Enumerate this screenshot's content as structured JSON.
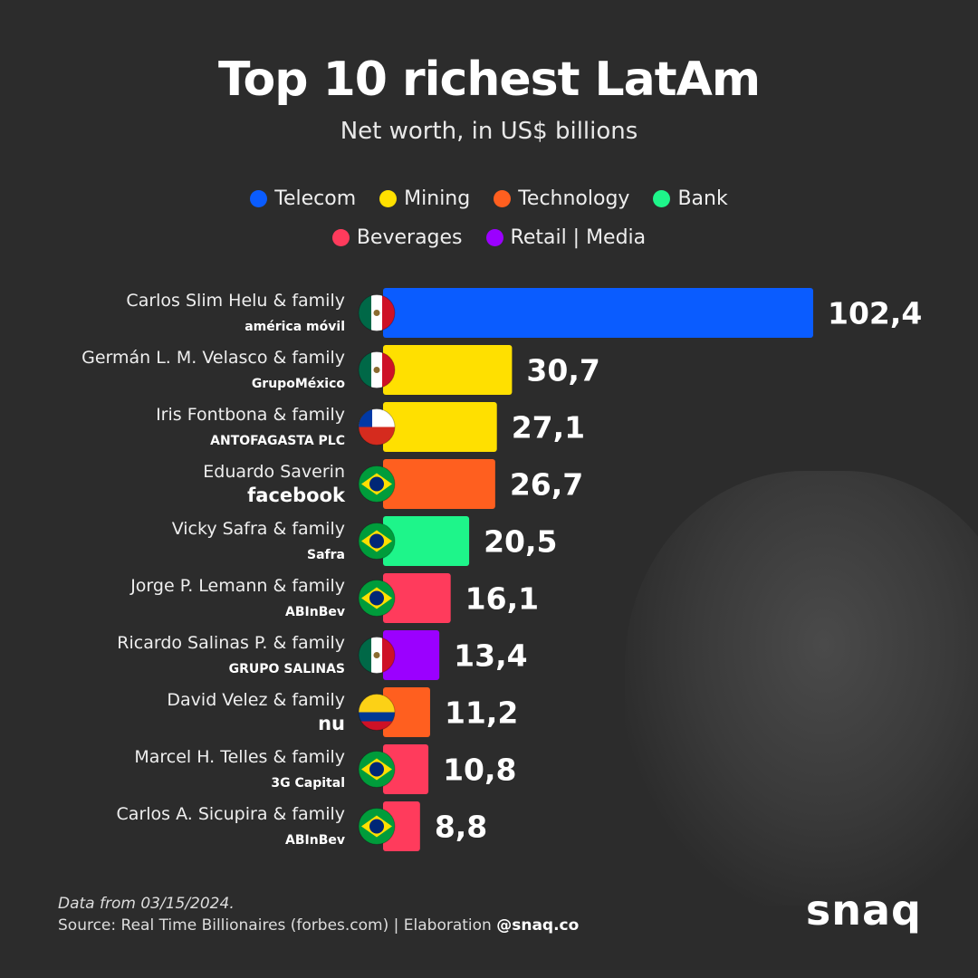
{
  "title": "Top 10 richest LatAm",
  "subtitle": "Net worth, in US$ billions",
  "legend": [
    {
      "label": "Telecom",
      "color": "#0a5cff"
    },
    {
      "label": "Mining",
      "color": "#ffe000"
    },
    {
      "label": "Technology",
      "color": "#ff5f1f"
    },
    {
      "label": "Bank",
      "color": "#1ef58a"
    },
    {
      "label": "Beverages",
      "color": "#ff3b5c"
    },
    {
      "label": "Retail | Media",
      "color": "#9b00ff"
    }
  ],
  "chart_data": {
    "type": "bar",
    "orientation": "horizontal",
    "title": "Top 10 richest LatAm",
    "subtitle": "Net worth, in US$ billions",
    "categories": [
      "Carlos Slim Helu & family",
      "Germán L. M. Velasco & family",
      "Iris Fontbona & family",
      "Eduardo Saverin",
      "Vicky Safra & family",
      "Jorge P. Lemann & family",
      "Ricardo Salinas P. & family",
      "David Velez & family",
      "Marcel H. Telles & family",
      "Carlos A. Sicupira & family"
    ],
    "values": [
      102.4,
      30.7,
      27.1,
      26.7,
      20.5,
      16.1,
      13.4,
      11.2,
      10.8,
      8.8
    ],
    "labels": [
      "102,4",
      "30,7",
      "27,1",
      "26,7",
      "20,5",
      "16,1",
      "13,4",
      "11,2",
      "10,8",
      "8,8"
    ],
    "companies": [
      "américa móvil",
      "GrupoMéxico",
      "ANTOFAGASTA PLC",
      "facebook",
      "Safra",
      "ABInBev",
      "GRUPO SALINAS",
      "nu",
      "3G Capital",
      "ABInBev"
    ],
    "countries": [
      "mexico",
      "mexico",
      "chile",
      "brazil",
      "brazil",
      "brazil",
      "mexico",
      "colombia",
      "brazil",
      "brazil"
    ],
    "sectors": [
      "Telecom",
      "Mining",
      "Mining",
      "Technology",
      "Bank",
      "Beverages",
      "Retail | Media",
      "Technology",
      "Beverages",
      "Beverages"
    ],
    "xlim": [
      0,
      102.4
    ],
    "grid": false
  },
  "footer": {
    "date": "Data from 03/15/2024.",
    "source": "Source: Real Time Billionaires (forbes.com) | Elaboration ",
    "handle": "@snaq.co"
  },
  "brand": "snaq"
}
